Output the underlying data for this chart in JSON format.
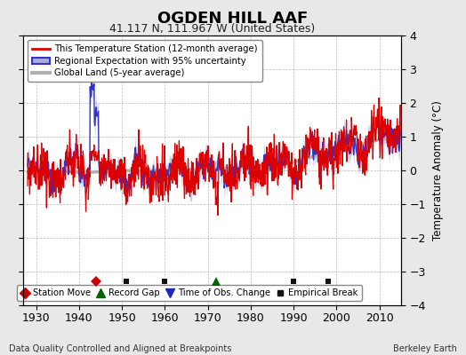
{
  "title": "OGDEN HILL AAF",
  "subtitle": "41.117 N, 111.967 W (United States)",
  "ylabel": "Temperature Anomaly (°C)",
  "footer_left": "Data Quality Controlled and Aligned at Breakpoints",
  "footer_right": "Berkeley Earth",
  "xlim": [
    1927,
    2015
  ],
  "ylim": [
    -4,
    4
  ],
  "yticks": [
    -4,
    -3,
    -2,
    -1,
    0,
    1,
    2,
    3,
    4
  ],
  "xticks": [
    1930,
    1940,
    1950,
    1960,
    1970,
    1980,
    1990,
    2000,
    2010
  ],
  "bg_color": "#e8e8e8",
  "plot_bg_color": "#ffffff",
  "red_line_color": "#dd0000",
  "blue_line_color": "#3333cc",
  "blue_fill_color": "#aaaadd",
  "gray_line_color": "#b0b0b0",
  "marker_events": {
    "station_move": [
      1944
    ],
    "record_gap": [
      1972
    ],
    "empirical_break": [
      1951,
      1960,
      1990,
      1998
    ]
  },
  "legend_items": [
    {
      "label": "This Temperature Station (12-month average)",
      "color": "#dd0000"
    },
    {
      "label": "Regional Expectation with 95% uncertainty",
      "color": "#3333cc"
    },
    {
      "label": "Global Land (5-year average)",
      "color": "#b0b0b0"
    }
  ],
  "marker_legend": [
    {
      "label": "Station Move",
      "marker": "D",
      "color": "#cc0000"
    },
    {
      "label": "Record Gap",
      "marker": "^",
      "color": "#006600"
    },
    {
      "label": "Time of Obs. Change",
      "marker": "v",
      "color": "#2222cc"
    },
    {
      "label": "Empirical Break",
      "marker": "s",
      "color": "#111111"
    }
  ]
}
